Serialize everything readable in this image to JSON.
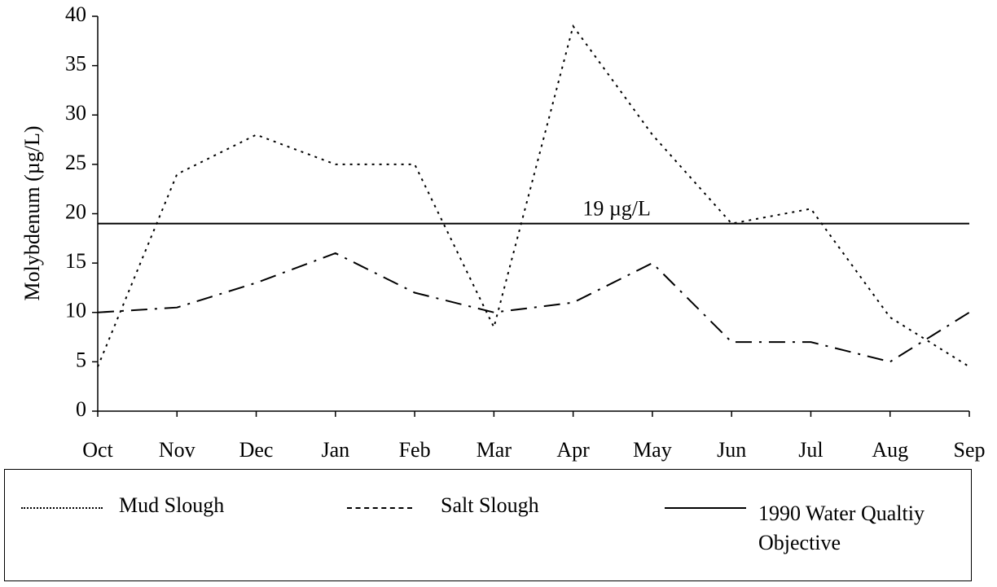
{
  "chart_data": {
    "type": "line",
    "y_label": "Molybdenum (µg/L)",
    "annotation": "19 µg/L",
    "categories": [
      "Oct",
      "Nov",
      "Dec",
      "Jan",
      "Feb",
      "Mar",
      "Apr",
      "May",
      "Jun",
      "Jul",
      "Aug",
      "Sep"
    ],
    "series": [
      {
        "name": "Mud Slough",
        "color": "#000000",
        "line_style": "dotted",
        "values": [
          4.5,
          24,
          28,
          25,
          25,
          8.5,
          39,
          28,
          19,
          20.5,
          9.5,
          4.5
        ]
      },
      {
        "name": "Salt Slough",
        "color": "#000000",
        "line_style": "dashdot",
        "values": [
          10,
          10.5,
          13,
          16,
          12,
          10,
          11,
          15,
          7,
          7,
          5,
          10
        ]
      },
      {
        "name": "1990 Water Qualtiy Objective",
        "color": "#000000",
        "line_style": "solid",
        "values": [
          19,
          19,
          19,
          19,
          19,
          19,
          19,
          19,
          19,
          19,
          19,
          19
        ]
      }
    ],
    "ylim": [
      0,
      40
    ],
    "yticks": [
      0,
      5,
      10,
      15,
      20,
      25,
      30,
      35,
      40
    ],
    "grid": false
  }
}
